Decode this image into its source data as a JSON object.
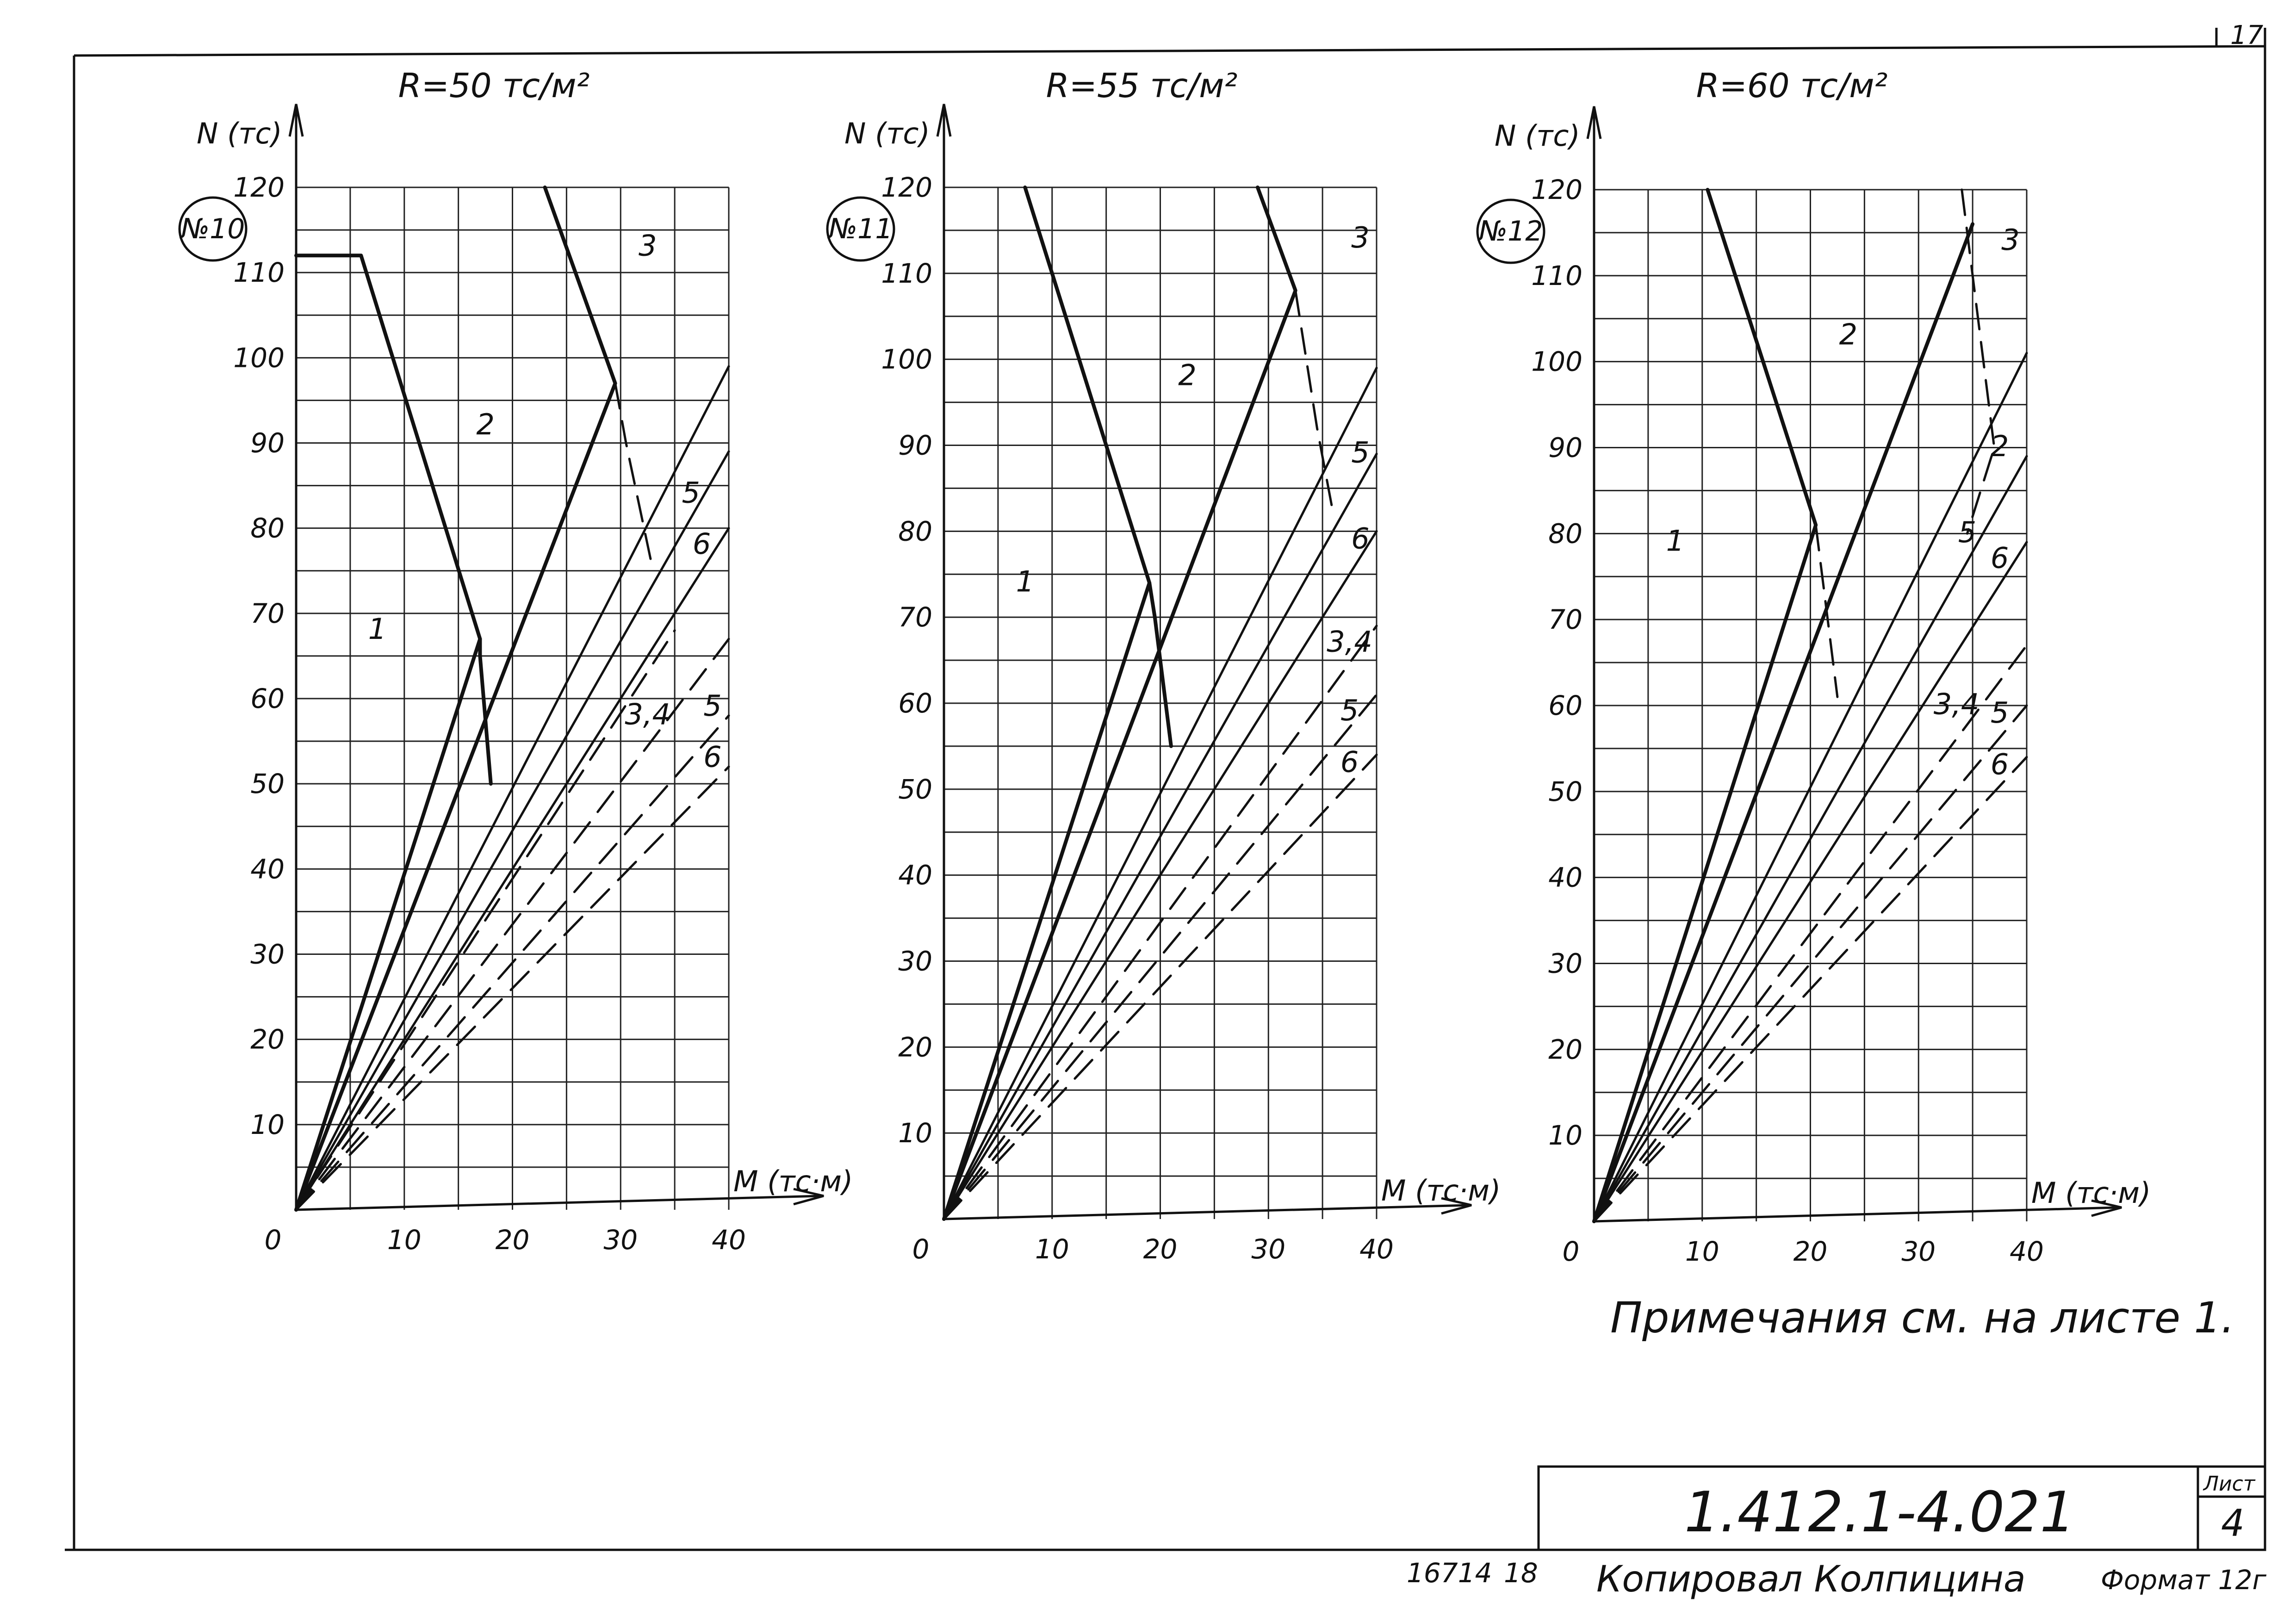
{
  "sheet": {
    "note": "Примечания см. на листе 1.",
    "document_code": "1.412.1-4.021",
    "sheet_label": "Лист",
    "sheet_number": "4",
    "footer_number_1": "16714",
    "footer_number_2": "18",
    "footer_copy": "Копировал Колпицина",
    "footer_format": "Формат 12г",
    "top_corner_mark": "17"
  },
  "chart_data": [
    {
      "type": "line",
      "badge": "№10",
      "title": "R=50 тс/м²",
      "xlabel": "М (тс·м)",
      "ylabel": "N (тс)",
      "xlim": [
        0,
        40
      ],
      "ylim": [
        0,
        120
      ],
      "x_ticks": [
        "0",
        "10",
        "20",
        "30",
        "40"
      ],
      "y_ticks": [
        "10",
        "20",
        "30",
        "40",
        "50",
        "60",
        "70",
        "80",
        "90",
        "100",
        "110",
        "120"
      ],
      "grid": true,
      "region_labels": [
        {
          "text": "1",
          "x": 7.5,
          "y": 67
        },
        {
          "text": "2",
          "x": 17.5,
          "y": 91
        },
        {
          "text": "3",
          "x": 32.5,
          "y": 112
        },
        {
          "text": "5",
          "x": 36.5,
          "y": 83
        },
        {
          "text": "6",
          "x": 37.5,
          "y": 77
        },
        {
          "text": "3,4",
          "x": 32.5,
          "y": 57
        },
        {
          "text": "5",
          "x": 38.5,
          "y": 58
        },
        {
          "text": "6",
          "x": 38.5,
          "y": 52
        }
      ],
      "series": [
        {
          "style": "solid-bold",
          "points": [
            [
              0,
              112
            ],
            [
              6,
              112
            ],
            [
              17,
              67
            ],
            [
              17,
              65
            ],
            [
              18,
              50
            ]
          ]
        },
        {
          "style": "solid-bold",
          "points": [
            [
              0,
              0
            ],
            [
              17,
              67
            ]
          ]
        },
        {
          "style": "solid-bold",
          "points": [
            [
              23,
              120
            ],
            [
              29.5,
              97
            ],
            [
              0,
              0
            ]
          ]
        },
        {
          "style": "dashed",
          "points": [
            [
              29.5,
              97
            ],
            [
              30.5,
              90
            ],
            [
              33,
              75
            ]
          ]
        },
        {
          "style": "solid",
          "points": [
            [
              0,
              0
            ],
            [
              40,
              99
            ]
          ]
        },
        {
          "style": "solid",
          "points": [
            [
              0,
              0
            ],
            [
              40,
              89
            ]
          ]
        },
        {
          "style": "solid",
          "points": [
            [
              0,
              0
            ],
            [
              40,
              80
            ]
          ]
        },
        {
          "style": "dashed",
          "points": [
            [
              0,
              0
            ],
            [
              35,
              68
            ]
          ]
        },
        {
          "style": "dashed",
          "points": [
            [
              0,
              0
            ],
            [
              40,
              67
            ]
          ]
        },
        {
          "style": "dashed",
          "points": [
            [
              0,
              0
            ],
            [
              40,
              58
            ]
          ]
        },
        {
          "style": "dashed",
          "points": [
            [
              0,
              0
            ],
            [
              40,
              52
            ]
          ]
        }
      ]
    },
    {
      "type": "line",
      "badge": "№11",
      "title": "R=55 тс/м²",
      "xlabel": "М (тс·м)",
      "ylabel": "N (тс)",
      "xlim": [
        0,
        40
      ],
      "ylim": [
        0,
        120
      ],
      "x_ticks": [
        "0",
        "10",
        "20",
        "30",
        "40"
      ],
      "y_ticks": [
        "10",
        "20",
        "30",
        "40",
        "50",
        "60",
        "70",
        "80",
        "90",
        "100",
        "110",
        "120"
      ],
      "grid": true,
      "region_labels": [
        {
          "text": "1",
          "x": 7.5,
          "y": 73
        },
        {
          "text": "2",
          "x": 22.5,
          "y": 97
        },
        {
          "text": "3",
          "x": 38.5,
          "y": 113
        },
        {
          "text": "5",
          "x": 38.5,
          "y": 88
        },
        {
          "text": "6",
          "x": 38.5,
          "y": 78
        },
        {
          "text": "3,4",
          "x": 37.5,
          "y": 66
        },
        {
          "text": "5",
          "x": 37.5,
          "y": 58
        },
        {
          "text": "6",
          "x": 37.5,
          "y": 52
        }
      ],
      "series": [
        {
          "style": "solid-bold",
          "points": [
            [
              7.5,
              120
            ],
            [
              19,
              74
            ],
            [
              19.5,
              70
            ],
            [
              21,
              55
            ]
          ]
        },
        {
          "style": "solid-bold",
          "points": [
            [
              0,
              0
            ],
            [
              19,
              74
            ]
          ]
        },
        {
          "style": "solid-bold",
          "points": [
            [
              29,
              120
            ],
            [
              32.5,
              108
            ],
            [
              0,
              0
            ]
          ]
        },
        {
          "style": "dashed",
          "points": [
            [
              32.5,
              108
            ],
            [
              34.5,
              92
            ],
            [
              36,
              82
            ]
          ]
        },
        {
          "style": "solid",
          "points": [
            [
              0,
              0
            ],
            [
              40,
              99
            ]
          ]
        },
        {
          "style": "solid",
          "points": [
            [
              0,
              0
            ],
            [
              40,
              89
            ]
          ]
        },
        {
          "style": "solid",
          "points": [
            [
              0,
              0
            ],
            [
              40,
              80
            ]
          ]
        },
        {
          "style": "dashed",
          "points": [
            [
              0,
              0
            ],
            [
              40,
              69
            ]
          ]
        },
        {
          "style": "dashed",
          "points": [
            [
              0,
              0
            ],
            [
              40,
              61
            ]
          ]
        },
        {
          "style": "dashed",
          "points": [
            [
              0,
              0
            ],
            [
              40,
              54
            ]
          ]
        }
      ]
    },
    {
      "type": "line",
      "badge": "№12",
      "title": "R=60 тс/м²",
      "xlabel": "М (тс·м)",
      "ylabel": "N (тс)",
      "xlim": [
        0,
        40
      ],
      "ylim": [
        0,
        120
      ],
      "x_ticks": [
        "0",
        "10",
        "20",
        "30",
        "40"
      ],
      "y_ticks": [
        "10",
        "20",
        "30",
        "40",
        "50",
        "60",
        "70",
        "80",
        "90",
        "100",
        "110",
        "120"
      ],
      "grid": true,
      "region_labels": [
        {
          "text": "1",
          "x": 7.5,
          "y": 78
        },
        {
          "text": "2",
          "x": 23.5,
          "y": 102
        },
        {
          "text": "3",
          "x": 38.5,
          "y": 113
        },
        {
          "text": "2",
          "x": 37.5,
          "y": 89
        },
        {
          "text": "5",
          "x": 34.5,
          "y": 79
        },
        {
          "text": "6",
          "x": 37.5,
          "y": 76
        },
        {
          "text": "3,4",
          "x": 33.5,
          "y": 59
        },
        {
          "text": "5",
          "x": 37.5,
          "y": 58
        },
        {
          "text": "6",
          "x": 37.5,
          "y": 52
        }
      ],
      "series": [
        {
          "style": "solid-bold",
          "points": [
            [
              10.5,
              120
            ],
            [
              20.5,
              81
            ],
            [
              0,
              0
            ]
          ]
        },
        {
          "style": "dashed",
          "points": [
            [
              20.5,
              81
            ],
            [
              21.5,
              71
            ],
            [
              22.5,
              61
            ]
          ]
        },
        {
          "style": "solid-bold",
          "points": [
            [
              35,
              116
            ],
            [
              0,
              0
            ]
          ]
        },
        {
          "style": "dashed",
          "points": [
            [
              34,
              120
            ],
            [
              37,
              90
            ],
            [
              34.5,
              80
            ]
          ]
        },
        {
          "style": "solid",
          "points": [
            [
              0,
              0
            ],
            [
              40,
              101
            ]
          ]
        },
        {
          "style": "solid",
          "points": [
            [
              0,
              0
            ],
            [
              40,
              89
            ]
          ]
        },
        {
          "style": "solid",
          "points": [
            [
              0,
              0
            ],
            [
              40,
              79
            ]
          ]
        },
        {
          "style": "dashed",
          "points": [
            [
              0,
              0
            ],
            [
              40,
              67
            ]
          ]
        },
        {
          "style": "dashed",
          "points": [
            [
              0,
              0
            ],
            [
              40,
              60
            ]
          ]
        },
        {
          "style": "dashed",
          "points": [
            [
              0,
              0
            ],
            [
              40,
              54
            ]
          ]
        }
      ]
    }
  ]
}
